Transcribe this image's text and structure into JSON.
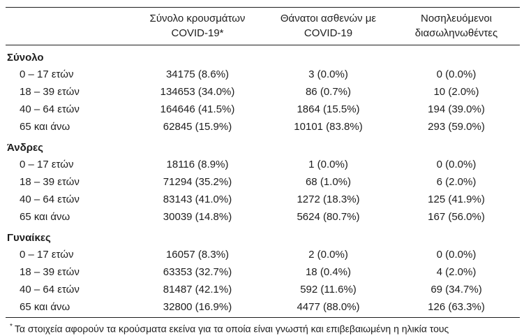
{
  "table": {
    "columns": [
      {
        "line1": "",
        "line2": ""
      },
      {
        "line1": "Σύνολο κρουσμάτων",
        "line2": "COVID-19*"
      },
      {
        "line1": "Θάνατοι ασθενών με",
        "line2": "COVID-19"
      },
      {
        "line1": "Νοσηλευόμενοι",
        "line2": "διασωληνωθέντες"
      }
    ],
    "groups": [
      {
        "label": "Σύνολο",
        "rows": [
          {
            "label": "0 – 17 ετών",
            "cases": "34175 (8.6%)",
            "deaths": "3 (0.0%)",
            "intubated": "0 (0.0%)"
          },
          {
            "label": "18 – 39 ετών",
            "cases": "134653 (34.0%)",
            "deaths": "86 (0.7%)",
            "intubated": "10 (2.0%)"
          },
          {
            "label": "40 – 64 ετών",
            "cases": "164646 (41.5%)",
            "deaths": "1864 (15.5%)",
            "intubated": "194 (39.0%)"
          },
          {
            "label": "65 και άνω",
            "cases": "62845 (15.9%)",
            "deaths": "10101 (83.8%)",
            "intubated": "293 (59.0%)"
          }
        ]
      },
      {
        "label": "Άνδρες",
        "rows": [
          {
            "label": "0 – 17 ετών",
            "cases": "18116 (8.9%)",
            "deaths": "1 (0.0%)",
            "intubated": "0 (0.0%)"
          },
          {
            "label": "18 – 39 ετών",
            "cases": "71294 (35.2%)",
            "deaths": "68 (1.0%)",
            "intubated": "6 (2.0%)"
          },
          {
            "label": "40 – 64 ετών",
            "cases": "83143 (41.0%)",
            "deaths": "1272 (18.3%)",
            "intubated": "125 (41.9%)"
          },
          {
            "label": "65 και άνω",
            "cases": "30039 (14.8%)",
            "deaths": "5624 (80.7%)",
            "intubated": "167 (56.0%)"
          }
        ]
      },
      {
        "label": "Γυναίκες",
        "rows": [
          {
            "label": "0 – 17 ετών",
            "cases": "16057 (8.3%)",
            "deaths": "2 (0.0%)",
            "intubated": "0 (0.0%)"
          },
          {
            "label": "18 – 39 ετών",
            "cases": "63353 (32.7%)",
            "deaths": "18 (0.4%)",
            "intubated": "4 (2.0%)"
          },
          {
            "label": "40 – 64 ετών",
            "cases": "81487 (42.1%)",
            "deaths": "592 (11.6%)",
            "intubated": "69 (34.7%)"
          },
          {
            "label": "65 και άνω",
            "cases": "32800 (16.9%)",
            "deaths": "4477 (88.0%)",
            "intubated": "126 (63.3%)"
          }
        ]
      }
    ],
    "footnote": {
      "marker": "*",
      "text": "Τα στοιχεία αφορούν τα κρούσματα εκείνα για τα οποία είναι γνωστή και επιβεβαιωμένη η ηλικία τους"
    },
    "colors": {
      "text": "#1d1d1d",
      "rule": "#1d1d1d",
      "background": "#ffffff"
    }
  }
}
